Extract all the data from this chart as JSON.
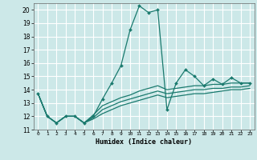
{
  "xlabel": "Humidex (Indice chaleur)",
  "ylabel": "",
  "background_color": "#cce8e8",
  "grid_color": "#ffffff",
  "line_color": "#1a7a6e",
  "xlim": [
    -0.5,
    23.5
  ],
  "ylim": [
    11,
    20.5
  ],
  "yticks": [
    11,
    12,
    13,
    14,
    15,
    16,
    17,
    18,
    19,
    20
  ],
  "xticks": [
    0,
    1,
    2,
    3,
    4,
    5,
    6,
    7,
    8,
    9,
    10,
    11,
    12,
    13,
    14,
    15,
    16,
    17,
    18,
    19,
    20,
    21,
    22,
    23
  ],
  "main_x": [
    0,
    1,
    2,
    3,
    4,
    5,
    6,
    7,
    8,
    9,
    10,
    11,
    12,
    13,
    14,
    15,
    16,
    17,
    18,
    19,
    20,
    21,
    22,
    23
  ],
  "main_y": [
    13.7,
    12.0,
    11.5,
    12.0,
    12.0,
    11.5,
    12.0,
    13.3,
    14.5,
    15.8,
    18.5,
    20.3,
    19.8,
    20.0,
    12.5,
    14.5,
    15.5,
    15.0,
    14.3,
    14.8,
    14.4,
    14.9,
    14.5,
    14.5
  ],
  "line2_x": [
    0,
    1,
    2,
    3,
    4,
    5,
    6,
    7,
    8,
    9,
    10,
    11,
    12,
    13,
    14,
    15,
    16,
    17,
    18,
    19,
    20,
    21,
    22,
    23
  ],
  "line2_y": [
    13.7,
    12.0,
    11.5,
    12.0,
    12.0,
    11.5,
    12.1,
    12.8,
    13.1,
    13.4,
    13.6,
    13.9,
    14.1,
    14.3,
    14.0,
    14.1,
    14.2,
    14.3,
    14.3,
    14.4,
    14.4,
    14.5,
    14.5,
    14.5
  ],
  "line3_x": [
    0,
    1,
    2,
    3,
    4,
    5,
    6,
    7,
    8,
    9,
    10,
    11,
    12,
    13,
    14,
    15,
    16,
    17,
    18,
    19,
    20,
    21,
    22,
    23
  ],
  "line3_y": [
    13.7,
    12.0,
    11.5,
    12.0,
    12.0,
    11.5,
    11.9,
    12.5,
    12.8,
    13.1,
    13.3,
    13.5,
    13.7,
    13.9,
    13.7,
    13.8,
    13.9,
    14.0,
    14.0,
    14.1,
    14.1,
    14.2,
    14.2,
    14.3
  ],
  "line4_x": [
    0,
    1,
    2,
    3,
    4,
    5,
    6,
    7,
    8,
    9,
    10,
    11,
    12,
    13,
    14,
    15,
    16,
    17,
    18,
    19,
    20,
    21,
    22,
    23
  ],
  "line4_y": [
    13.7,
    12.0,
    11.5,
    12.0,
    12.0,
    11.5,
    11.8,
    12.2,
    12.5,
    12.8,
    13.0,
    13.2,
    13.4,
    13.6,
    13.4,
    13.5,
    13.6,
    13.7,
    13.7,
    13.8,
    13.9,
    14.0,
    14.0,
    14.1
  ]
}
